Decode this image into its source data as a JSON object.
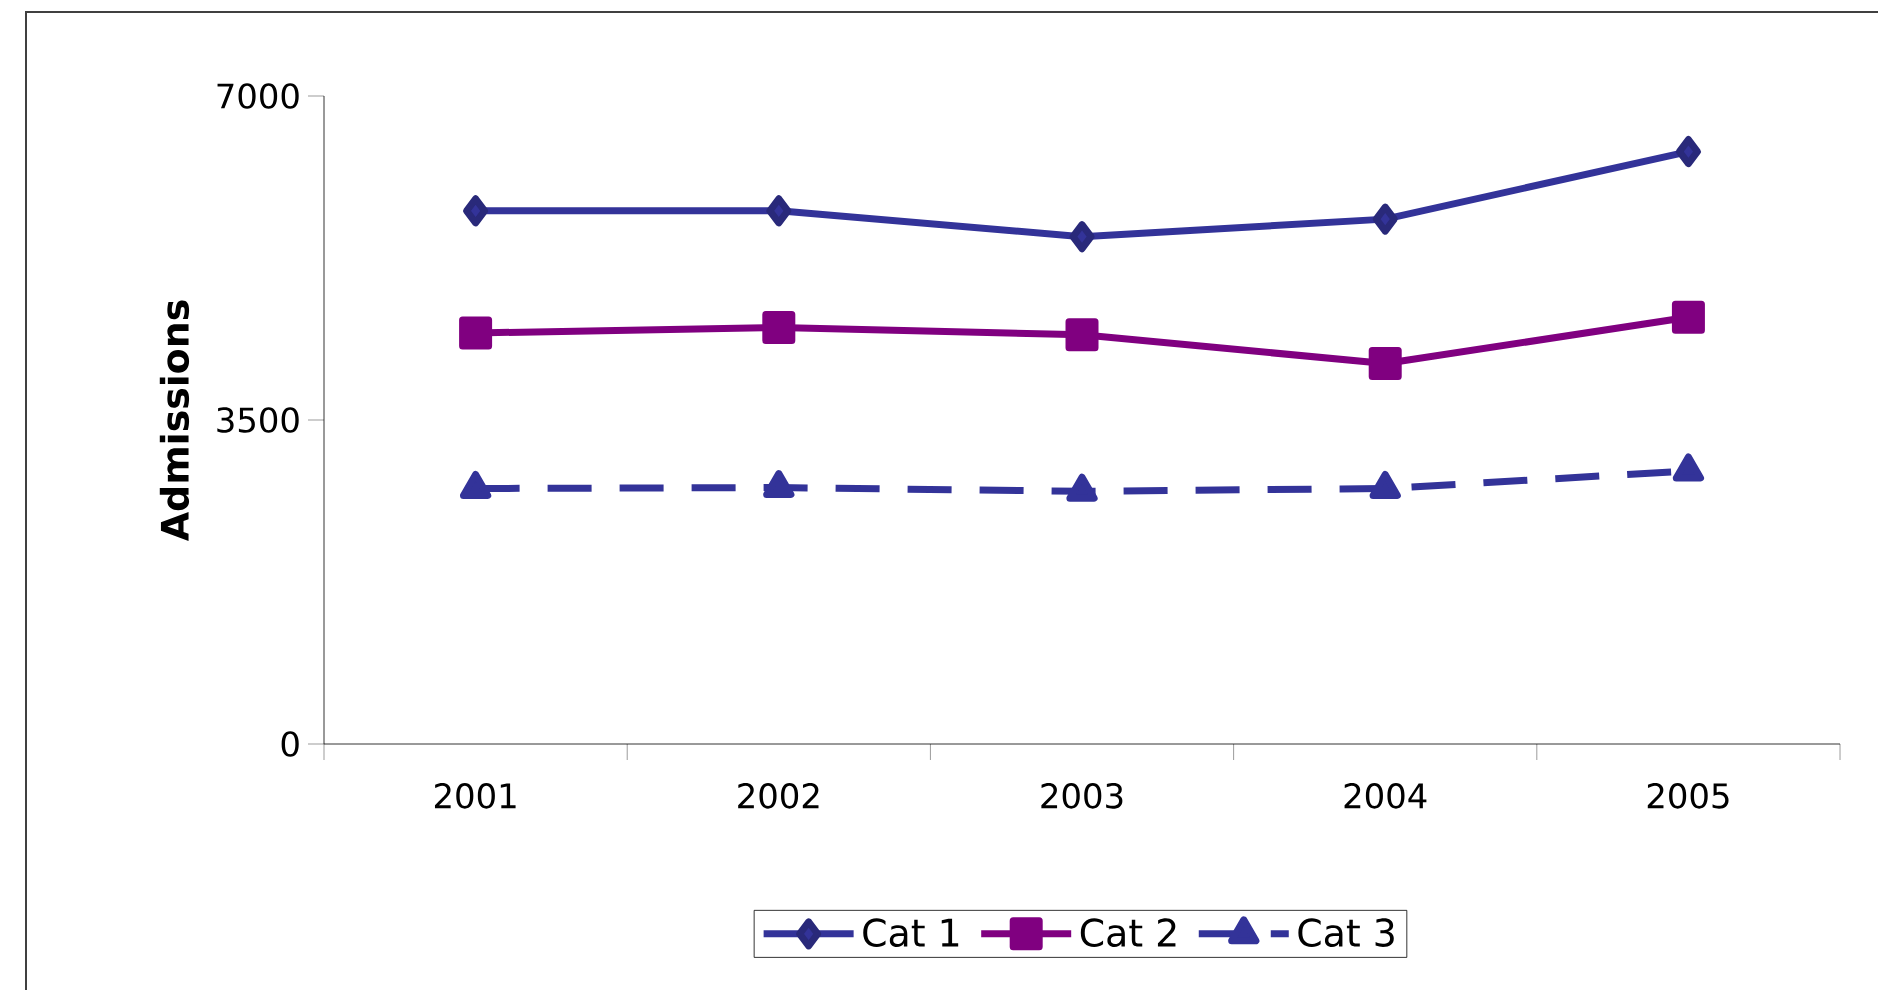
{
  "chart_data": {
    "type": "line",
    "ylabel": "Admissions",
    "categories": [
      "2001",
      "2002",
      "2003",
      "2004",
      "2005"
    ],
    "series": [
      {
        "name": "Cat 1",
        "color": "#333399",
        "marker": "diamond",
        "line_style": "solid",
        "values": [
          5760,
          5760,
          5480,
          5670,
          6400
        ]
      },
      {
        "name": "Cat 2",
        "color": "#800080",
        "marker": "square",
        "line_style": "solid",
        "values": [
          4440,
          4500,
          4420,
          4110,
          4610
        ]
      },
      {
        "name": "Cat 3",
        "color": "#333399",
        "marker": "triangle",
        "line_style": "dashed",
        "values": [
          2760,
          2770,
          2730,
          2760,
          2950
        ]
      }
    ],
    "ylim": [
      0,
      7000
    ],
    "yticks": [
      0,
      3500,
      7000
    ],
    "grid": false,
    "legend": "bottom"
  }
}
